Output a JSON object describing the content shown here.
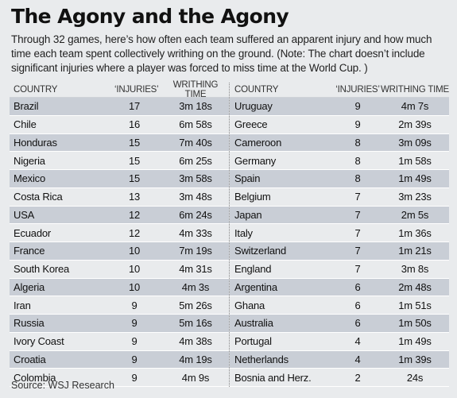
{
  "title": "The Agony and the Agony",
  "subtitle": "Through 32 games, here’s how often each team suffered an apparent injury and how much time each team spent collectively writhing on the ground. (Note: The chart doesn’t include significant injuries where a player was forced to miss time at the World Cup. )",
  "source": "Source: WSJ Research",
  "chart_data": {
    "type": "table",
    "columns": [
      "COUNTRY",
      "‘INJURIES’",
      "WRITHING TIME"
    ],
    "rows": [
      [
        "Brazil",
        "17",
        "3m 18s"
      ],
      [
        "Chile",
        "16",
        "6m 58s"
      ],
      [
        "Honduras",
        "15",
        "7m 40s"
      ],
      [
        "Nigeria",
        "15",
        "6m 25s"
      ],
      [
        "Mexico",
        "15",
        "3m 58s"
      ],
      [
        "Costa Rica",
        "13",
        "3m 48s"
      ],
      [
        "USA",
        "12",
        "6m 24s"
      ],
      [
        "Ecuador",
        "12",
        "4m 33s"
      ],
      [
        "France",
        "10",
        "7m 19s"
      ],
      [
        "South Korea",
        "10",
        "4m 31s"
      ],
      [
        "Algeria",
        "10",
        "4m 3s"
      ],
      [
        "Iran",
        "9",
        "5m 26s"
      ],
      [
        "Russia",
        "9",
        "5m 16s"
      ],
      [
        "Ivory Coast",
        "9",
        "4m 38s"
      ],
      [
        "Croatia",
        "9",
        "4m 19s"
      ],
      [
        "Colombia",
        "9",
        "4m 9s"
      ],
      [
        "Uruguay",
        "9",
        "4m 7s"
      ],
      [
        "Greece",
        "9",
        "2m 39s"
      ],
      [
        "Cameroon",
        "8",
        "3m 09s"
      ],
      [
        "Germany",
        "8",
        "1m 58s"
      ],
      [
        "Spain",
        "8",
        "1m 49s"
      ],
      [
        "Belgium",
        "7",
        "3m 23s"
      ],
      [
        "Japan",
        "7",
        "2m 5s"
      ],
      [
        "Italy",
        "7",
        "1m 36s"
      ],
      [
        "Switzerland",
        "7",
        "1m 21s"
      ],
      [
        "England",
        "7",
        "3m 8s"
      ],
      [
        "Argentina",
        "6",
        "2m 48s"
      ],
      [
        "Ghana",
        "6",
        "1m 51s"
      ],
      [
        "Australia",
        "6",
        "1m 50s"
      ],
      [
        "Portugal",
        "4",
        "1m 49s"
      ],
      [
        "Netherlands",
        "4",
        "1m 39s"
      ],
      [
        "Bosnia and Herz.",
        "2",
        "24s"
      ]
    ]
  }
}
